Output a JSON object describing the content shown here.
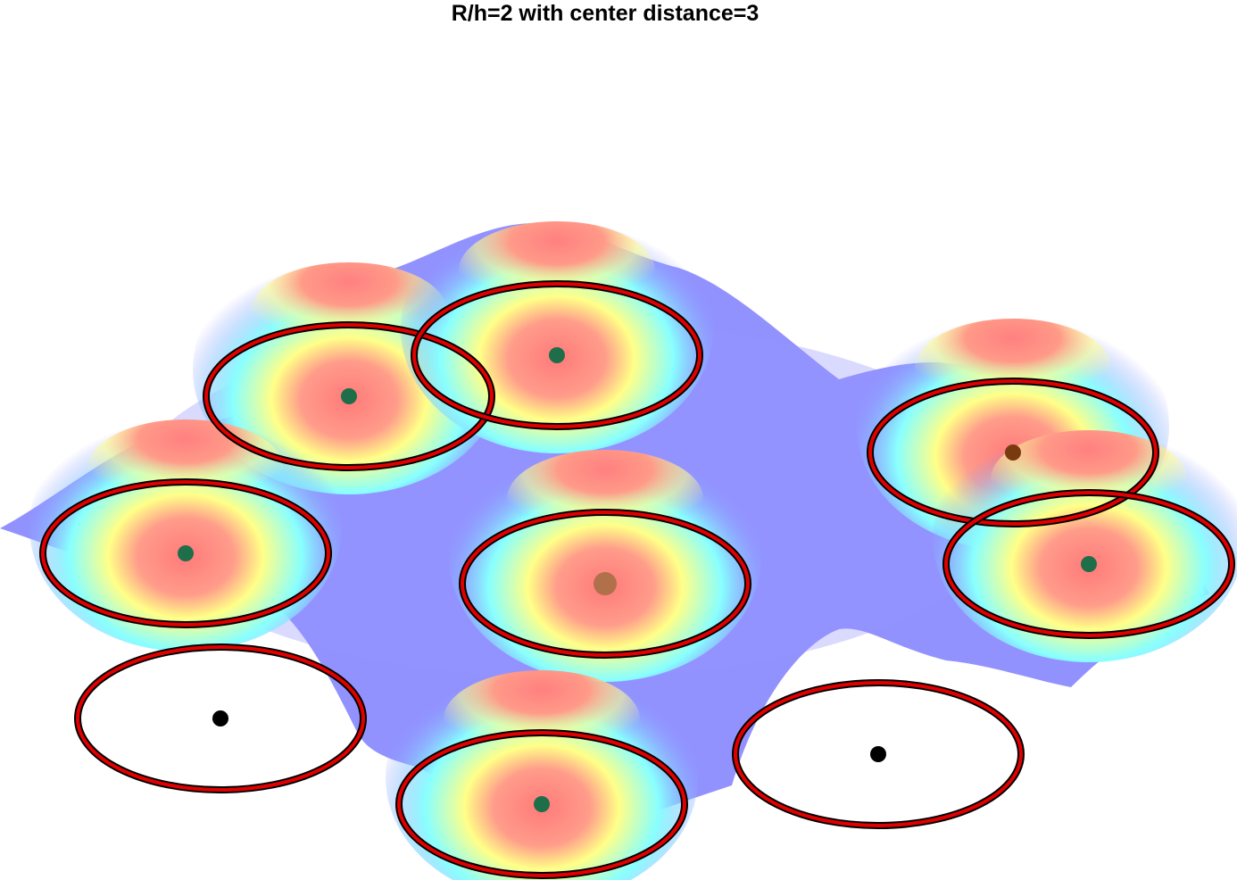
{
  "chart_data": {
    "type": "surface",
    "title": "R/h=2 with center distance=3",
    "colormap": [
      "#8080ff",
      "#80ffff",
      "#ffff80",
      "#ff8080"
    ],
    "grid": false,
    "axes_visible": false,
    "centers": [
      {
        "label": "",
        "has_peak": true,
        "marker_color": "#1f6e4a"
      },
      {
        "label": "",
        "has_peak": true,
        "marker_color": "#1f6e4a"
      },
      {
        "label": "",
        "has_peak": true,
        "marker_color": "#1f6e4a"
      },
      {
        "label": "",
        "has_peak": true,
        "marker_color": "#b0704a"
      },
      {
        "label": "",
        "has_peak": true,
        "marker_color": "#7a3a10"
      },
      {
        "label": "",
        "has_peak": true,
        "marker_color": "#1f6e4a"
      },
      {
        "label": "",
        "has_peak": false,
        "marker_color": "#000000"
      },
      {
        "label": "",
        "has_peak": true,
        "marker_color": "#1f6e4a"
      },
      {
        "label": "",
        "has_peak": false,
        "marker_color": "#000000"
      }
    ],
    "ring_color": "#e00000"
  }
}
